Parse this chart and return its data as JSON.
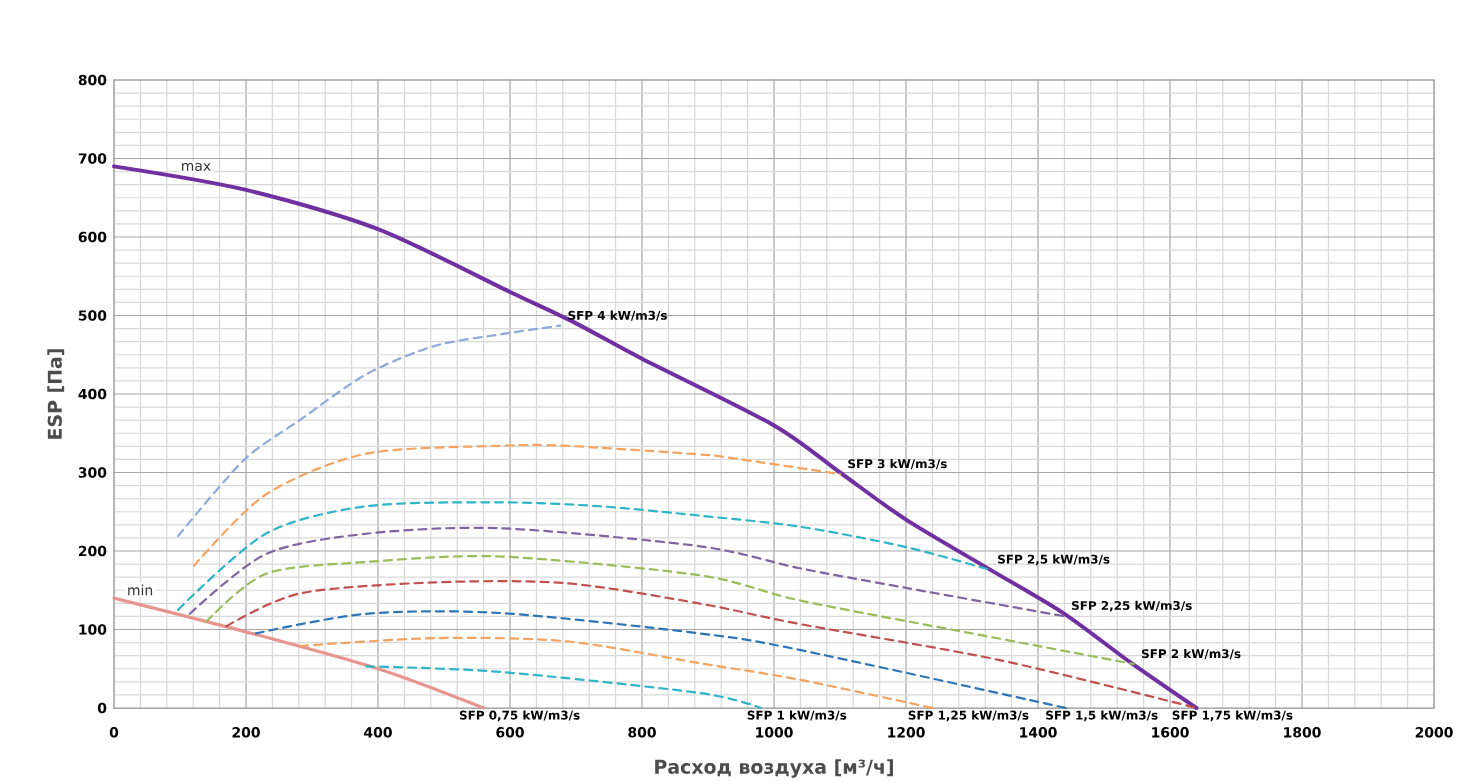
{
  "chart_data": {
    "type": "line",
    "xlabel": "Расход воздуха [м³/ч]",
    "ylabel": "ESP [Па]",
    "xlim": [
      0,
      2000
    ],
    "ylim": [
      0,
      800
    ],
    "xticks": [
      0,
      200,
      400,
      600,
      800,
      1000,
      1200,
      1400,
      1600,
      1800,
      2000
    ],
    "yticks": [
      0,
      100,
      200,
      300,
      400,
      500,
      600,
      700,
      800
    ],
    "grid": true,
    "marker": "none",
    "series": [
      {
        "name": "max",
        "color": "#7030a0",
        "line_style": "solid",
        "x": [
          0,
          200,
          400,
          600,
          700,
          800,
          1000,
          1100,
          1200,
          1330,
          1440,
          1540,
          1640
        ],
        "values": [
          690,
          660,
          610,
          530,
          490,
          445,
          360,
          300,
          240,
          175,
          120,
          58,
          0
        ]
      },
      {
        "name": "min",
        "color": "#e6958f",
        "line_style": "solid",
        "x": [
          0,
          200,
          400,
          560
        ],
        "values": [
          140,
          97,
          50,
          0
        ]
      },
      {
        "color": "#8eaadb",
        "line_style": "dashed",
        "x": [
          97,
          197,
          282,
          382,
          485,
          585,
          676
        ],
        "values": [
          219,
          316,
          367,
          425,
          461,
          476,
          487
        ]
      },
      {
        "color": "#f4a460",
        "line_style": "dashed",
        "x": [
          121,
          230,
          382,
          585,
          685,
          888,
          939,
          1100
        ],
        "values": [
          181,
          272,
          324,
          334,
          334,
          323,
          318,
          298
        ]
      },
      {
        "color": "#2fb5c8",
        "line_style": "dashed",
        "x": [
          97,
          230,
          382,
          585,
          736,
          888,
          1039,
          1200,
          1327
        ],
        "values": [
          125,
          222,
          257,
          262,
          257,
          245,
          231,
          205,
          176
        ]
      },
      {
        "color": "#8064a2",
        "line_style": "dashed",
        "x": [
          115,
          230,
          382,
          585,
          888,
          1039,
          1200,
          1439
        ],
        "values": [
          120,
          196,
          222,
          229,
          206,
          178,
          153,
          117
        ]
      },
      {
        "color": "#9bbb59",
        "line_style": "dashed",
        "x": [
          140,
          230,
          382,
          585,
          888,
          1039,
          1300,
          1545
        ],
        "values": [
          110,
          171,
          186,
          193,
          169,
          137,
          95,
          56
        ]
      },
      {
        "color": "#c0504d",
        "line_style": "dashed",
        "x": [
          170,
          282,
          485,
          685,
          888,
          1039,
          1342,
          1640
        ],
        "values": [
          104,
          146,
          160,
          159,
          133,
          107,
          61,
          0
        ]
      },
      {
        "color": "#2e75b6",
        "line_style": "dashed",
        "x": [
          215,
          382,
          585,
          888,
          1039,
          1442
        ],
        "values": [
          95,
          120,
          121,
          95,
          74,
          0
        ]
      },
      {
        "color": "#f4a460",
        "line_style": "dashed",
        "x": [
          282,
          485,
          685,
          888,
          1039,
          1240
        ],
        "values": [
          79,
          89,
          85,
          57,
          36,
          0
        ]
      },
      {
        "color": "#2fb5c8",
        "line_style": "dashed",
        "x": [
          382,
          585,
          888,
          980
        ],
        "values": [
          53,
          46,
          19,
          0
        ]
      }
    ],
    "annotations": [
      {
        "text": "SFP 4 kW/m3/s",
        "x": 676,
        "y": 487
      },
      {
        "text": "SFP 3 kW/m3/s",
        "x": 1100,
        "y": 298
      },
      {
        "text": "SFP 2,5 kW/m3/s",
        "x": 1327,
        "y": 176
      },
      {
        "text": "SFP 2,25 kW/m3/s",
        "x": 1439,
        "y": 117
      },
      {
        "text": "SFP 2 kW/m3/s",
        "x": 1545,
        "y": 56
      },
      {
        "text": "SFP 1,75 kW/m3/s",
        "x": 1640,
        "y": 0
      },
      {
        "text": "SFP 1,5 kW/m3/s",
        "x": 1442,
        "y": 0
      },
      {
        "text": "SFP 1,25 kW/m3/s",
        "x": 1240,
        "y": 0
      },
      {
        "text": "SFP 1 kW/m3/s",
        "x": 980,
        "y": 0
      },
      {
        "text": "SFP 0,75 kW/m3/s",
        "x": 560,
        "y": 0
      }
    ]
  }
}
